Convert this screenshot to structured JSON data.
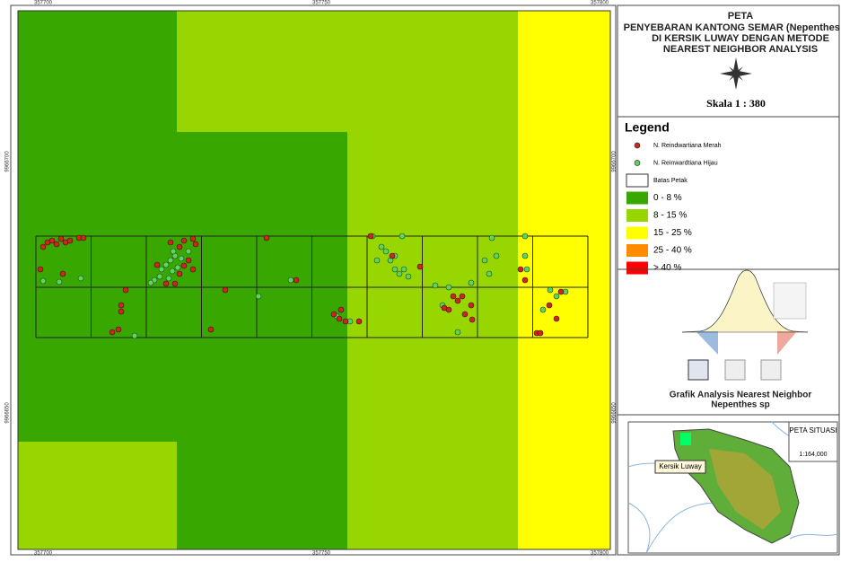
{
  "map": {
    "top_ticks": [
      "357700",
      "357750",
      "357800"
    ],
    "bottom_ticks": [
      "357700",
      "357750",
      "357800"
    ],
    "left_ticks": [
      "9966700",
      "9966650"
    ],
    "right_ticks": [
      "9966700",
      "9966650"
    ]
  },
  "title": {
    "lines": [
      "PETA",
      "PENYEBARAN KANTONG SEMAR (Nepenthes sp)",
      "DI KERSIK LUWAY DENGAN METODE",
      "NEAREST NEIGHBOR ANALYSIS"
    ],
    "scale": "Skala 1 : 380"
  },
  "legend": {
    "title": "Legend",
    "items": [
      {
        "label": "N. Reindwartiana Merah",
        "color": "#c8281e",
        "kind": "dot"
      },
      {
        "label": "N. Reinwardtiana Hijau",
        "color": "#5fd35f",
        "kind": "dot"
      },
      {
        "label": "Batas Petak",
        "color": "#ffffff",
        "kind": "box"
      },
      {
        "label": "0 - 8 %",
        "color": "#38a800",
        "kind": "fill"
      },
      {
        "label": "8 - 15 %",
        "color": "#98d600",
        "kind": "fill"
      },
      {
        "label": "15 - 25 %",
        "color": "#ffff00",
        "kind": "fill"
      },
      {
        "label": "25 - 40 %",
        "color": "#ff8c00",
        "kind": "fill"
      },
      {
        "label": "> 40 %",
        "color": "#ff0000",
        "kind": "fill"
      }
    ]
  },
  "graph": {
    "caption": [
      "Grafik Analysis Nearest Neighbor",
      "Nepenthes sp"
    ]
  },
  "inset": {
    "title": "PETA SITUASI",
    "scale": "1:164,000",
    "place": "Kersik Luway"
  }
}
